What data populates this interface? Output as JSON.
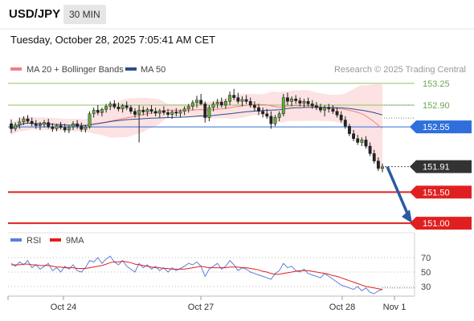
{
  "header": {
    "symbol": "USD/JPY",
    "timeframe": "30 MIN",
    "datetime": "Tuesday, October 28, 2025 7:05:41 AM CET"
  },
  "chart_data": [
    {
      "type": "candlestick",
      "legend": [
        {
          "name": "MA 20 + Bollinger Bands",
          "color": "#f08080"
        },
        {
          "name": "MA 50",
          "color": "#2e4d8a"
        }
      ],
      "credit": "Research © 2025 Trading Central",
      "y_range": [
        150.95,
        153.3
      ],
      "x_ticks": [
        "Oct 24",
        "Oct 27",
        "Oct 28",
        "Nov 1"
      ],
      "levels": [
        {
          "value": 153.25,
          "label": "153.25",
          "kind": "resistance-line",
          "color": "#8cc464"
        },
        {
          "value": 152.9,
          "label": "152.90",
          "kind": "resistance-line",
          "color": "#8cc464"
        },
        {
          "value": 152.55,
          "label": "152.55",
          "kind": "pivot",
          "color": "#2f6fdc"
        },
        {
          "value": 151.91,
          "label": "151.91",
          "kind": "last-price",
          "color": "#333333"
        },
        {
          "value": 151.5,
          "label": "151.50",
          "kind": "support",
          "color": "#e02020"
        },
        {
          "value": 151.0,
          "label": "151.00",
          "kind": "support",
          "color": "#e02020"
        }
      ],
      "projection": {
        "from": 151.91,
        "to": 151.0,
        "color": "#2c5aa0"
      },
      "candles_approx": [
        [
          152.6,
          152.67,
          152.45,
          152.52
        ],
        [
          152.52,
          152.62,
          152.48,
          152.58
        ],
        [
          152.58,
          152.7,
          152.52,
          152.63
        ],
        [
          152.63,
          152.72,
          152.58,
          152.68
        ],
        [
          152.68,
          152.74,
          152.6,
          152.64
        ],
        [
          152.64,
          152.7,
          152.56,
          152.6
        ],
        [
          152.6,
          152.66,
          152.52,
          152.57
        ],
        [
          152.57,
          152.63,
          152.5,
          152.59
        ],
        [
          152.59,
          152.66,
          152.54,
          152.62
        ],
        [
          152.62,
          152.68,
          152.52,
          152.55
        ],
        [
          152.55,
          152.61,
          152.47,
          152.52
        ],
        [
          152.52,
          152.6,
          152.48,
          152.57
        ],
        [
          152.57,
          152.63,
          152.51,
          152.54
        ],
        [
          152.54,
          152.6,
          152.46,
          152.5
        ],
        [
          152.5,
          152.58,
          152.45,
          152.55
        ],
        [
          152.55,
          152.64,
          152.5,
          152.6
        ],
        [
          152.6,
          152.66,
          152.52,
          152.56
        ],
        [
          152.56,
          152.62,
          152.47,
          152.51
        ],
        [
          152.51,
          152.58,
          152.46,
          152.55
        ],
        [
          152.55,
          152.8,
          152.52,
          152.76
        ],
        [
          152.76,
          152.86,
          152.7,
          152.82
        ],
        [
          152.82,
          152.9,
          152.74,
          152.78
        ],
        [
          152.78,
          152.86,
          152.72,
          152.83
        ],
        [
          152.83,
          152.92,
          152.78,
          152.88
        ],
        [
          152.88,
          152.96,
          152.82,
          152.92
        ],
        [
          152.92,
          152.98,
          152.84,
          152.87
        ],
        [
          152.87,
          152.94,
          152.8,
          152.84
        ],
        [
          152.84,
          152.92,
          152.78,
          152.89
        ],
        [
          152.89,
          152.96,
          152.82,
          152.86
        ],
        [
          152.86,
          152.9,
          152.76,
          152.8
        ],
        [
          152.8,
          152.85,
          152.7,
          152.75
        ],
        [
          152.75,
          152.9,
          152.3,
          152.82
        ],
        [
          152.82,
          152.88,
          152.74,
          152.79
        ],
        [
          152.79,
          152.86,
          152.72,
          152.83
        ],
        [
          152.83,
          152.9,
          152.76,
          152.8
        ],
        [
          152.8,
          152.86,
          152.72,
          152.77
        ],
        [
          152.77,
          152.84,
          152.7,
          152.81
        ],
        [
          152.81,
          152.88,
          152.74,
          152.78
        ],
        [
          152.78,
          152.84,
          152.7,
          152.75
        ],
        [
          152.75,
          152.82,
          152.68,
          152.79
        ],
        [
          152.79,
          152.85,
          152.72,
          152.77
        ],
        [
          152.77,
          152.83,
          152.7,
          152.8
        ],
        [
          152.8,
          152.88,
          152.74,
          152.84
        ],
        [
          152.84,
          152.92,
          152.78,
          152.88
        ],
        [
          152.88,
          152.98,
          152.82,
          152.94
        ],
        [
          152.94,
          153.05,
          152.86,
          152.98
        ],
        [
          152.98,
          153.08,
          152.9,
          152.92
        ],
        [
          152.92,
          152.96,
          152.62,
          152.7
        ],
        [
          152.7,
          152.9,
          152.64,
          152.86
        ],
        [
          152.86,
          152.96,
          152.8,
          152.92
        ],
        [
          152.92,
          153.0,
          152.85,
          152.95
        ],
        [
          152.95,
          153.02,
          152.86,
          152.9
        ],
        [
          152.9,
          153.0,
          152.84,
          152.96
        ],
        [
          152.96,
          153.12,
          152.9,
          153.06
        ],
        [
          153.06,
          153.16,
          152.98,
          153.02
        ],
        [
          153.02,
          153.1,
          152.92,
          152.96
        ],
        [
          152.96,
          153.04,
          152.88,
          152.99
        ],
        [
          152.99,
          153.06,
          152.92,
          152.96
        ],
        [
          152.96,
          153.02,
          152.86,
          152.9
        ],
        [
          152.9,
          152.96,
          152.8,
          152.86
        ],
        [
          152.86,
          152.92,
          152.74,
          152.8
        ],
        [
          152.8,
          152.86,
          152.7,
          152.76
        ],
        [
          152.76,
          152.84,
          152.68,
          152.72
        ],
        [
          152.72,
          152.8,
          152.52,
          152.6
        ],
        [
          152.6,
          152.74,
          152.56,
          152.7
        ],
        [
          152.7,
          152.8,
          152.64,
          152.76
        ],
        [
          152.76,
          153.08,
          152.72,
          153.02
        ],
        [
          153.02,
          153.1,
          152.9,
          152.96
        ],
        [
          152.96,
          153.04,
          152.88,
          153.0
        ],
        [
          153.0,
          153.06,
          152.92,
          152.97
        ],
        [
          152.97,
          153.02,
          152.88,
          152.93
        ],
        [
          152.93,
          153.0,
          152.86,
          152.96
        ],
        [
          152.96,
          153.02,
          152.88,
          152.92
        ],
        [
          152.92,
          152.98,
          152.84,
          152.89
        ],
        [
          152.89,
          152.95,
          152.82,
          152.86
        ],
        [
          152.86,
          152.92,
          152.78,
          152.82
        ],
        [
          152.82,
          152.9,
          152.72,
          152.86
        ],
        [
          152.86,
          152.92,
          152.78,
          152.84
        ],
        [
          152.84,
          152.9,
          152.76,
          152.8
        ],
        [
          152.8,
          152.86,
          152.7,
          152.74
        ],
        [
          152.74,
          152.8,
          152.62,
          152.66
        ],
        [
          152.66,
          152.72,
          152.52,
          152.56
        ],
        [
          152.56,
          152.6,
          152.4,
          152.44
        ],
        [
          152.44,
          152.5,
          152.32,
          152.36
        ],
        [
          152.36,
          152.42,
          152.26,
          152.3
        ],
        [
          152.3,
          152.38,
          152.24,
          152.34
        ],
        [
          152.34,
          152.4,
          152.2,
          152.24
        ],
        [
          152.24,
          152.3,
          152.08,
          152.12
        ],
        [
          152.12,
          152.18,
          151.96,
          152.0
        ],
        [
          152.0,
          152.06,
          151.84,
          151.88
        ],
        [
          151.88,
          151.96,
          151.82,
          151.91
        ]
      ]
    },
    {
      "type": "line",
      "legend": [
        {
          "name": "RSI",
          "color": "#5b7fd6"
        },
        {
          "name": "9MA",
          "color": "#e02020"
        }
      ],
      "y_range": [
        20,
        80
      ],
      "y_ticks": [
        30,
        50,
        70
      ],
      "rsi_approx": [
        62,
        58,
        64,
        60,
        66,
        56,
        60,
        54,
        58,
        62,
        52,
        56,
        50,
        58,
        54,
        60,
        52,
        50,
        56,
        66,
        64,
        70,
        62,
        68,
        72,
        64,
        60,
        66,
        58,
        54,
        50,
        62,
        56,
        60,
        54,
        58,
        52,
        56,
        50,
        56,
        52,
        55,
        58,
        62,
        60,
        64,
        58,
        44,
        54,
        58,
        62,
        54,
        58,
        66,
        60,
        52,
        56,
        54,
        50,
        48,
        46,
        44,
        42,
        40,
        48,
        52,
        62,
        56,
        58,
        52,
        50,
        54,
        48,
        46,
        44,
        42,
        48,
        44,
        40,
        36,
        32,
        30,
        28,
        26,
        30,
        24,
        28,
        22,
        20,
        24,
        26
      ],
      "ma9_approx": [
        60,
        60,
        60,
        61,
        61,
        60,
        60,
        59,
        59,
        59,
        58,
        57,
        57,
        56,
        56,
        56,
        55,
        55,
        55,
        56,
        57,
        58,
        59,
        61,
        63,
        64,
        64,
        65,
        64,
        63,
        61,
        60,
        59,
        58,
        57,
        56,
        56,
        55,
        55,
        54,
        54,
        54,
        54,
        55,
        56,
        57,
        58,
        57,
        56,
        56,
        56,
        56,
        56,
        57,
        57,
        57,
        56,
        56,
        55,
        54,
        53,
        51,
        50,
        48,
        47,
        47,
        48,
        49,
        50,
        51,
        52,
        52,
        52,
        51,
        50,
        49,
        48,
        47,
        45,
        44,
        42,
        40,
        38,
        36,
        34,
        32,
        30,
        29,
        28,
        27,
        26
      ]
    }
  ]
}
